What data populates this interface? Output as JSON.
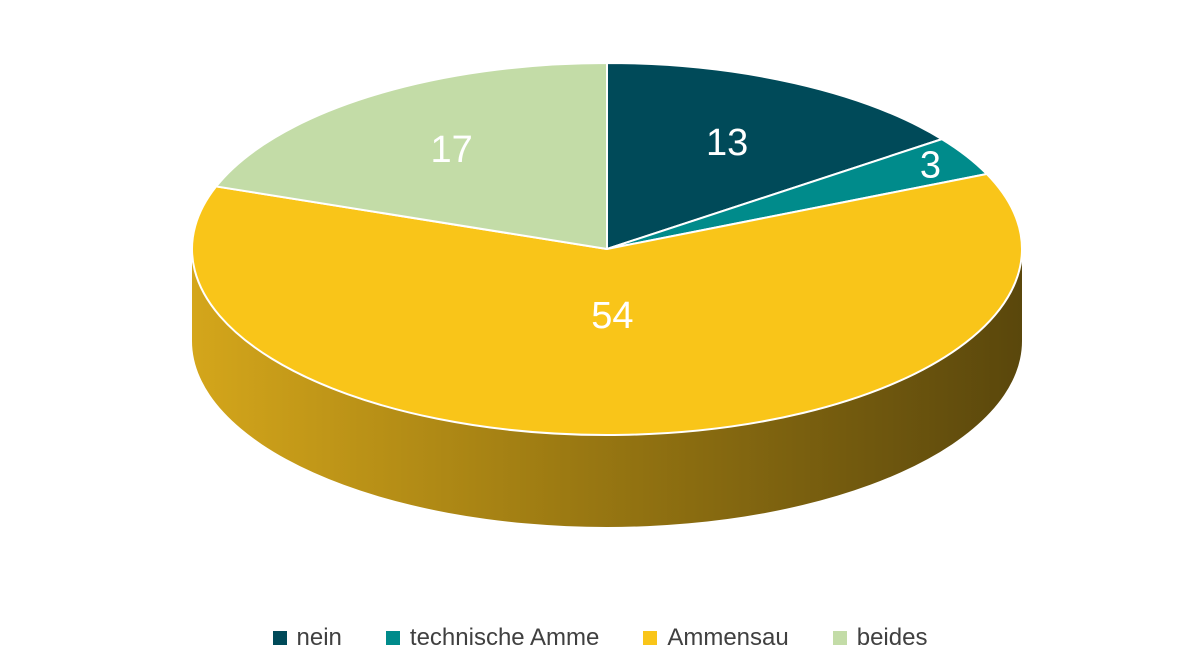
{
  "chart_data": {
    "type": "pie",
    "style": "3d",
    "categories": [
      "nein",
      "technische Amme",
      "Ammensau",
      "beides"
    ],
    "values": [
      13,
      3,
      54,
      17
    ],
    "data_labels": [
      "13",
      "3",
      "54",
      "17"
    ],
    "colors": [
      "#004a59",
      "#008b8b",
      "#f9c519",
      "#c3dca7"
    ],
    "legend": {
      "position": "bottom",
      "entries": [
        "nein",
        "technische Amme",
        "Ammensau",
        "beides"
      ]
    },
    "title": ""
  }
}
